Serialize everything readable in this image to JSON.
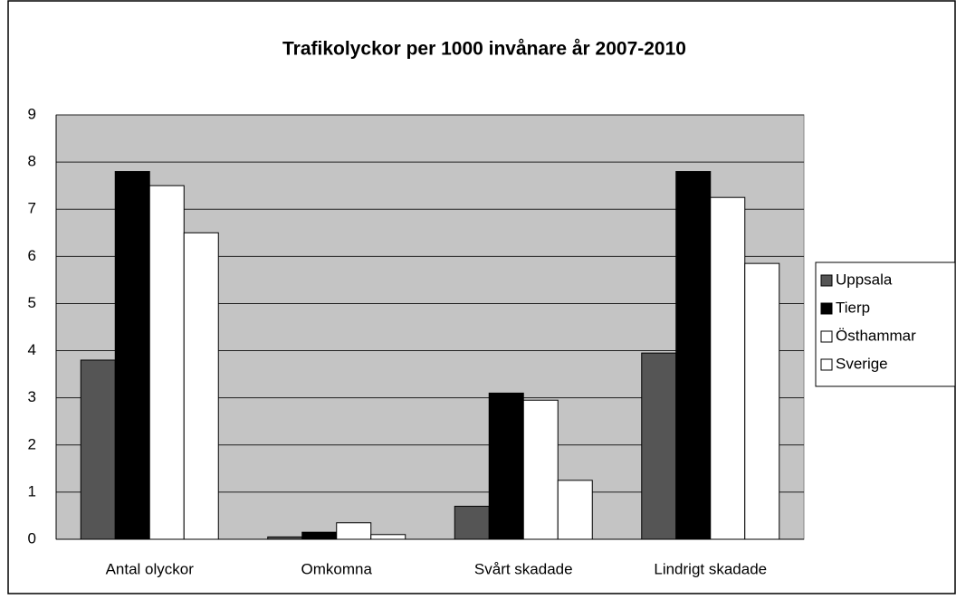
{
  "chart_data": {
    "type": "bar",
    "title": "Trafikolyckor per 1000 invånare år 2007-2010",
    "categories": [
      "Antal olyckor",
      "Omkomna",
      "Svårt skadade",
      "Lindrigt skadade"
    ],
    "series": [
      {
        "name": "Uppsala",
        "color": "#555555",
        "values": [
          3.8,
          0.05,
          0.7,
          3.95
        ]
      },
      {
        "name": "Tierp",
        "color": "#000000",
        "values": [
          7.8,
          0.15,
          3.1,
          7.8
        ]
      },
      {
        "name": "Östhammar",
        "color": "#ffffff",
        "values": [
          7.5,
          0.35,
          2.95,
          7.25
        ]
      },
      {
        "name": "Sverige",
        "color": "#ffffff",
        "values": [
          6.5,
          0.1,
          1.25,
          5.85
        ]
      }
    ],
    "ylim": [
      0,
      9
    ],
    "yticks": [
      0,
      1,
      2,
      3,
      4,
      5,
      6,
      7,
      8,
      9
    ],
    "grid": true,
    "legend": "right"
  }
}
